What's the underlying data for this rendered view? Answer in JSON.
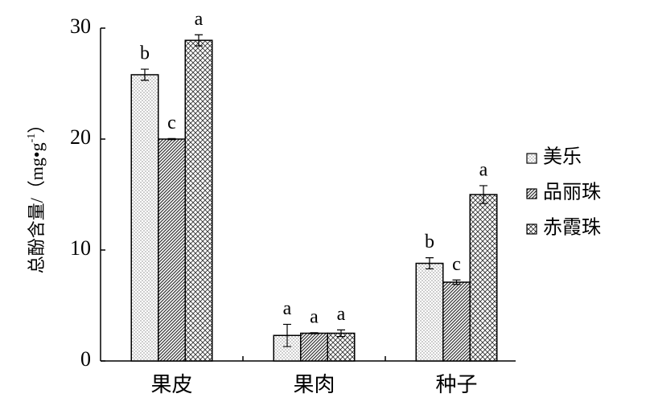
{
  "chart_data": {
    "type": "bar",
    "ylabel": {
      "text": "总酚含量/（mg•g",
      "sup": "-1",
      "end": "）"
    },
    "categories": [
      "果皮",
      "果肉",
      "种子"
    ],
    "series": [
      {
        "name": "美乐",
        "pattern": "dots",
        "values": [
          25.8,
          2.3,
          8.8
        ],
        "errors": [
          0.5,
          1.0,
          0.5
        ],
        "letters": [
          "b",
          "a",
          "b"
        ]
      },
      {
        "name": "品丽珠",
        "pattern": "lines",
        "values": [
          20.0,
          2.5,
          7.1
        ],
        "errors": [
          0.05,
          0.05,
          0.2
        ],
        "letters": [
          "c",
          "a",
          "c"
        ]
      },
      {
        "name": "赤霞珠",
        "pattern": "cross",
        "values": [
          28.9,
          2.5,
          15.0
        ],
        "errors": [
          0.5,
          0.3,
          0.8
        ],
        "letters": [
          "a",
          "a",
          "a"
        ]
      }
    ],
    "ylim": [
      0,
      30
    ],
    "yticks": [
      0,
      10,
      20,
      30
    ]
  }
}
